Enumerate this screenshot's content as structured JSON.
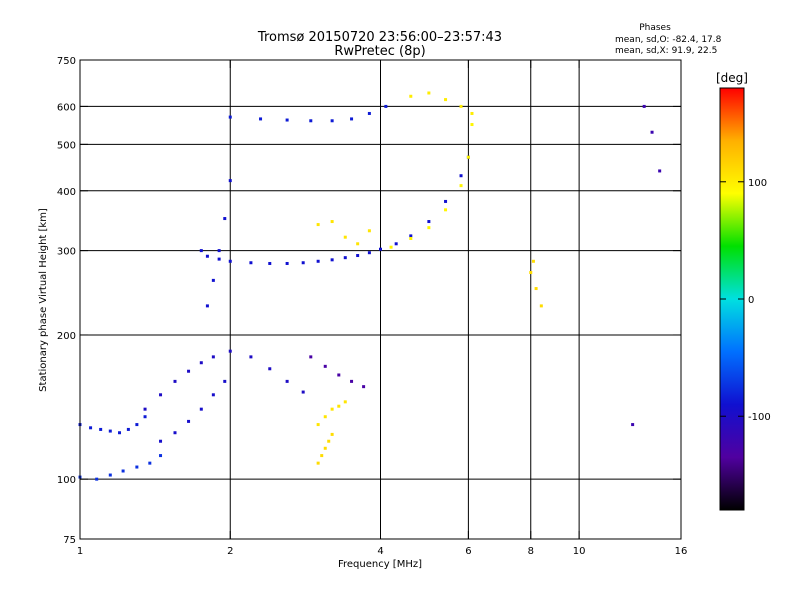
{
  "header": {
    "title_line1": "Tromsø 20150720 23:56:00–23:57:43",
    "title_line2": "RwPretec (8p)"
  },
  "phase_info": {
    "label": "Phases",
    "line_o": "mean, sd,O: -82.4, 17.8",
    "line_x": "mean, sd,X:  91.9, 22.5"
  },
  "chart_data": {
    "type": "scatter",
    "title": "Tromsø 20150720 23:56:00–23:57:43",
    "subtitle": "RwPretec (8p)",
    "xlabel": "Frequency [MHz]",
    "ylabel": "Stationary phase Virtual Height [km]",
    "x_scale": "log",
    "y_scale": "log",
    "xlim": [
      1,
      16
    ],
    "ylim": [
      75,
      750
    ],
    "x_ticks": [
      1,
      2,
      4,
      6,
      8,
      10,
      16
    ],
    "x_tick_labels": [
      "1",
      "2",
      "4",
      "6",
      "8",
      "10",
      "16"
    ],
    "y_ticks": [
      75,
      100,
      200,
      300,
      400,
      500,
      600,
      750
    ],
    "y_tick_labels": [
      "75",
      "100",
      "200",
      "300",
      "400",
      "500",
      "600",
      "750"
    ],
    "grid": true,
    "grid_x": [
      2,
      4,
      6,
      8,
      10
    ],
    "grid_y": [
      100,
      200,
      300,
      400,
      500,
      600
    ],
    "colorbar": {
      "label": "[deg]",
      "range": [
        -180,
        180
      ],
      "ticks": [
        100,
        0,
        -100
      ],
      "tick_labels": [
        "100",
        "0",
        "-100"
      ],
      "colors": [
        "#ff0000",
        "#ffb000",
        "#ffff00",
        "#00e000",
        "#00e0e0",
        "#0070ff",
        "#1010d0",
        "#5000a0",
        "#000000"
      ]
    },
    "series": [
      {
        "x": [
          1.0,
          1.08,
          1.15,
          1.22,
          1.3,
          1.38,
          1.45
        ],
        "y": [
          101,
          100,
          102,
          104,
          106,
          108,
          112
        ],
        "phase": -75
      },
      {
        "x": [
          1.0,
          1.05,
          1.1,
          1.15,
          1.2,
          1.25,
          1.3,
          1.35
        ],
        "y": [
          130,
          128,
          127,
          126,
          125,
          127,
          130,
          135
        ],
        "phase": -85
      },
      {
        "x": [
          1.45,
          1.55,
          1.65,
          1.75,
          1.85,
          1.95
        ],
        "y": [
          120,
          125,
          132,
          140,
          150,
          160
        ],
        "phase": -95
      },
      {
        "x": [
          1.35,
          1.45,
          1.55,
          1.65,
          1.75,
          1.85,
          2.0,
          2.2,
          2.4,
          2.6,
          2.8
        ],
        "y": [
          140,
          150,
          160,
          168,
          175,
          180,
          185,
          180,
          170,
          160,
          152
        ],
        "phase": -100
      },
      {
        "x": [
          1.8,
          1.85,
          1.9,
          1.95,
          2.0
        ],
        "y": [
          230,
          260,
          300,
          350,
          420
        ],
        "phase": -90
      },
      {
        "x": [
          1.75,
          1.8,
          1.9,
          2.0,
          2.2,
          2.4,
          2.6,
          2.8,
          3.0,
          3.2,
          3.4,
          3.6,
          3.8,
          4.0,
          4.3,
          4.6,
          5.0,
          5.4,
          5.8,
          6.0
        ],
        "y": [
          300,
          292,
          288,
          285,
          283,
          282,
          282,
          283,
          285,
          287,
          290,
          293,
          297,
          302,
          310,
          322,
          345,
          380,
          430,
          470
        ],
        "phase": -90
      },
      {
        "x": [
          4.2,
          4.6,
          5.0,
          5.4,
          5.8,
          6.0,
          6.1
        ],
        "y": [
          305,
          318,
          335,
          365,
          410,
          470,
          550
        ],
        "phase": 95
      },
      {
        "x": [
          2.0,
          2.3,
          2.6,
          2.9,
          3.2,
          3.5,
          3.8,
          4.1
        ],
        "y": [
          570,
          565,
          562,
          560,
          560,
          565,
          580,
          600
        ],
        "phase": -85
      },
      {
        "x": [
          4.6,
          5.0,
          5.4,
          5.8,
          6.1
        ],
        "y": [
          630,
          640,
          620,
          600,
          580
        ],
        "phase": 100
      },
      {
        "x": [
          3.0,
          3.1,
          3.2,
          3.3,
          3.4
        ],
        "y": [
          130,
          135,
          140,
          142,
          145
        ],
        "phase": 105
      },
      {
        "x": [
          3.0,
          3.05,
          3.1,
          3.15,
          3.2
        ],
        "y": [
          108,
          112,
          116,
          120,
          124
        ],
        "phase": 110
      },
      {
        "x": [
          2.9,
          3.1,
          3.3,
          3.5,
          3.7
        ],
        "y": [
          180,
          172,
          165,
          160,
          156
        ],
        "phase": -130
      },
      {
        "x": [
          3.0,
          3.2,
          3.4,
          3.6,
          3.8
        ],
        "y": [
          340,
          345,
          320,
          310,
          330
        ],
        "phase": 105
      },
      {
        "x": [
          8.0,
          8.1,
          8.2,
          8.4
        ],
        "y": [
          270,
          285,
          250,
          230
        ],
        "phase": 110
      },
      {
        "x": [
          12.8,
          13.5,
          14.0,
          14.5
        ],
        "y": [
          130,
          600,
          530,
          440
        ],
        "phase": -120
      }
    ]
  }
}
